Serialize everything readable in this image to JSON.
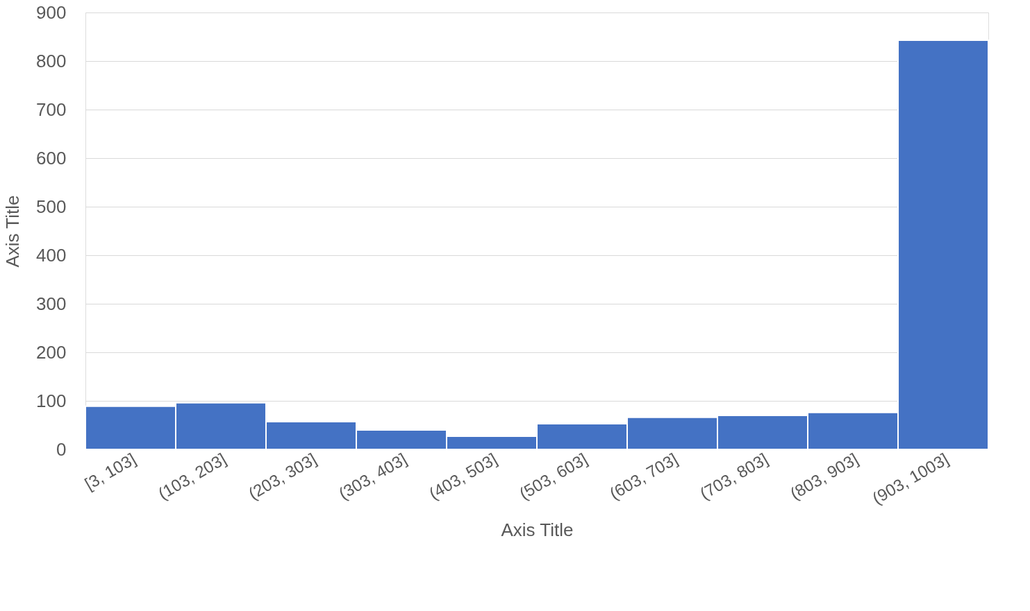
{
  "chart_data": {
    "type": "bar",
    "xlabel": "Axis Title",
    "ylabel": "Axis Title",
    "categories": [
      "[3, 103]",
      "(103, 203]",
      "(203, 303]",
      "(303, 403]",
      "(403, 503]",
      "(503, 603]",
      "(603, 703]",
      "(703, 803]",
      "(803, 903]",
      "(903, 1003]"
    ],
    "values": [
      89,
      96,
      57,
      40,
      27,
      53,
      66,
      70,
      76,
      843
    ],
    "color": "#4472c4",
    "ylim": [
      0,
      900
    ],
    "yticks": [
      0,
      100,
      200,
      300,
      400,
      500,
      600,
      700,
      800,
      900
    ],
    "grid": "y"
  }
}
